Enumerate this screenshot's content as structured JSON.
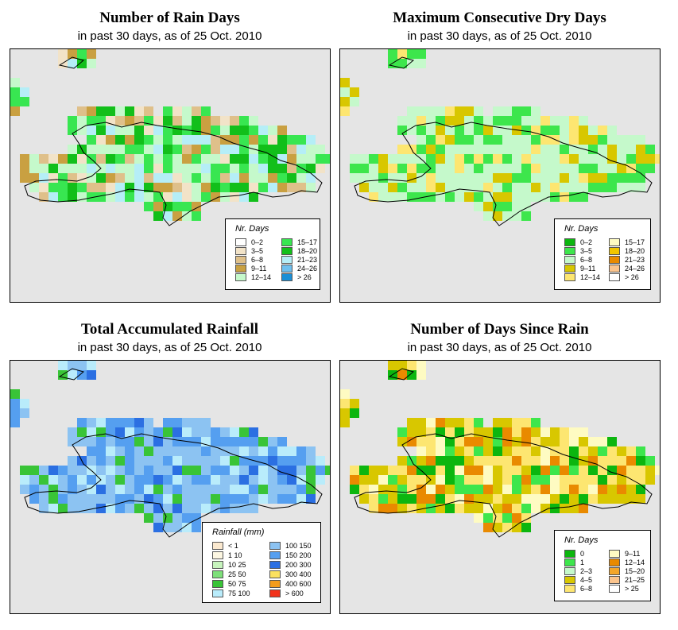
{
  "panels": [
    {
      "title": "Number of Rain Days",
      "subtitle": "in past 30 days, as of  25 Oct. 2010",
      "legend": {
        "title": "Nr. Days",
        "items": [
          {
            "label": "0–2",
            "color": "#ffffff"
          },
          {
            "label": "3–5",
            "color": "#f2e3c8"
          },
          {
            "label": "6–8",
            "color": "#dfc08a"
          },
          {
            "label": "9–11",
            "color": "#c9a041"
          },
          {
            "label": "12–14",
            "color": "#c5f9cb"
          },
          {
            "label": "15–17",
            "color": "#38e651"
          },
          {
            "label": "18–20",
            "color": "#12bf1a"
          },
          {
            "label": "21–23",
            "color": "#b5eef7"
          },
          {
            "label": "24–26",
            "color": "#6fc0ef"
          },
          {
            "label": "> 26",
            "color": "#1b8fd6"
          }
        ]
      }
    },
    {
      "title": "Maximum Consecutive Dry Days",
      "subtitle": "in past 30 days, as of  25 Oct. 2010",
      "legend": {
        "title": "Nr. Days",
        "items": [
          {
            "label": "0–2",
            "color": "#0cb60f"
          },
          {
            "label": "3–5",
            "color": "#3de64c"
          },
          {
            "label": "6–8",
            "color": "#c5f9cb"
          },
          {
            "label": "9–11",
            "color": "#d8c700"
          },
          {
            "label": "12–14",
            "color": "#fde671"
          },
          {
            "label": "15–17",
            "color": "#fefbc2"
          },
          {
            "label": "18–20",
            "color": "#f1c500"
          },
          {
            "label": "21–23",
            "color": "#e98a00"
          },
          {
            "label": "24–26",
            "color": "#fbc48d"
          },
          {
            "label": "> 26",
            "color": "#ffffff"
          }
        ]
      }
    },
    {
      "title": "Total Accumulated Rainfall",
      "subtitle": "in past 30 days, as of  25 Oct. 2010",
      "legend": {
        "title": "Rainfall (mm)",
        "items": [
          {
            "label": "< 1",
            "color": "#fbe9cf"
          },
          {
            "label": "1    10",
            "color": "#fdf7e2"
          },
          {
            "label": "10    25",
            "color": "#c7f4bd"
          },
          {
            "label": "25    50",
            "color": "#7ee07a"
          },
          {
            "label": "50    75",
            "color": "#39c437"
          },
          {
            "label": "75  100",
            "color": "#b9ecfb"
          },
          {
            "label": "100  150",
            "color": "#8cc3f2"
          },
          {
            "label": "150  200",
            "color": "#559ff0"
          },
          {
            "label": "200  300",
            "color": "#2b6fe2"
          },
          {
            "label": "300  400",
            "color": "#fbe15e"
          },
          {
            "label": "400  600",
            "color": "#f39c1c"
          },
          {
            "label": "> 600",
            "color": "#f2331c"
          }
        ]
      }
    },
    {
      "title": "Number of Days Since Rain",
      "subtitle": "in past 30 days, as of  25 Oct. 2010",
      "legend": {
        "title": "Nr. Days",
        "items": [
          {
            "label": "0",
            "color": "#0cb60f"
          },
          {
            "label": "1",
            "color": "#3de64c"
          },
          {
            "label": "2–3",
            "color": "#c5f9cb"
          },
          {
            "label": "4–5",
            "color": "#d8c700"
          },
          {
            "label": "6–8",
            "color": "#fde671"
          },
          {
            "label": "9–11",
            "color": "#fefbc2"
          },
          {
            "label": "12–14",
            "color": "#e98a00"
          },
          {
            "label": "15–20",
            "color": "#f4a62a"
          },
          {
            "label": "21–25",
            "color": "#fbc48d"
          },
          {
            "label": "> 25",
            "color": "#ffffff"
          }
        ]
      }
    }
  ]
}
